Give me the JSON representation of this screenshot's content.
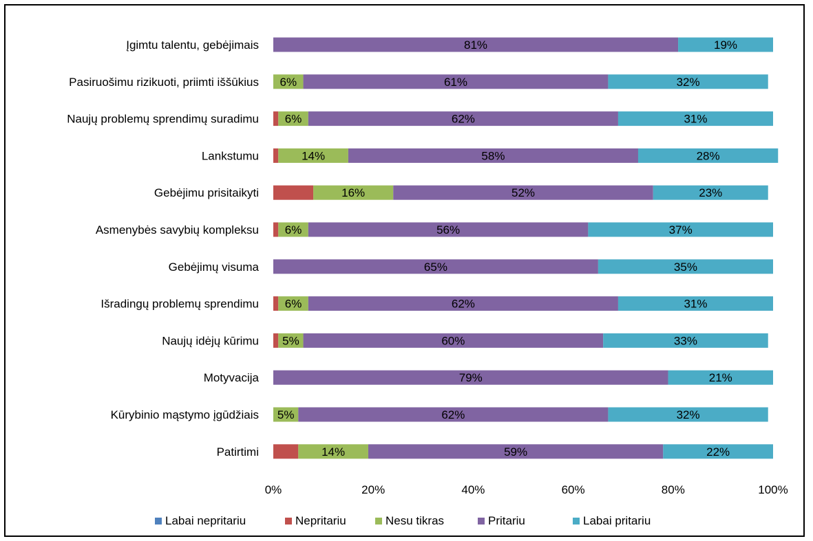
{
  "chart_data": {
    "type": "bar",
    "orientation": "horizontal",
    "stacked": "percent",
    "categories": [
      "Įgimtu talentu, gebėjimais",
      "Pasiruošimu rizikuoti, priimti iššūkius",
      "Naujų problemų sprendimų suradimu",
      "Lankstumu",
      "Gebėjimu prisitaikyti",
      "Asmenybės savybių kompleksu",
      "Gebėjimų visuma",
      "Išradingų problemų sprendimu",
      "Naujų idėjų kūrimu",
      "Motyvacija",
      "Kūrybinio mąstymo įgūdžiais",
      "Patirtimi"
    ],
    "series": [
      {
        "name": "Labai nepritariu",
        "color": "#4f81bd",
        "values": [
          0,
          0,
          0,
          0,
          0,
          0,
          0,
          0,
          0,
          0,
          0,
          0
        ]
      },
      {
        "name": "Nepritariu",
        "color": "#c0504d",
        "values": [
          0,
          0,
          1,
          1,
          8,
          1,
          0,
          1,
          1,
          0,
          0,
          5
        ]
      },
      {
        "name": "Nesu tikras",
        "color": "#9bbb59",
        "values": [
          0,
          6,
          6,
          14,
          16,
          6,
          0,
          6,
          5,
          0,
          5,
          14
        ]
      },
      {
        "name": "Pritariu",
        "color": "#8064a2",
        "values": [
          81,
          61,
          62,
          58,
          52,
          56,
          65,
          62,
          60,
          79,
          62,
          59
        ]
      },
      {
        "name": "Labai pritariu",
        "color": "#4bacc6",
        "values": [
          19,
          32,
          31,
          28,
          23,
          37,
          35,
          31,
          33,
          21,
          32,
          22
        ]
      }
    ],
    "labeled_series": [
      "Nesu tikras",
      "Pritariu",
      "Labai pritariu"
    ],
    "x_ticks": [
      "0%",
      "20%",
      "40%",
      "60%",
      "80%",
      "100%"
    ],
    "xlim": [
      0,
      100
    ],
    "grid": false,
    "legend_position": "bottom"
  }
}
